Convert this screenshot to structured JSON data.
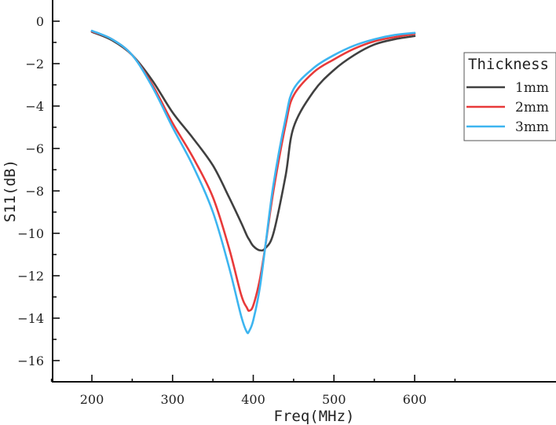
{
  "chart_data": {
    "type": "line",
    "title": "",
    "xlabel": "Freq(MHz)",
    "ylabel": "S11(dB)",
    "xlim": [
      150,
      650
    ],
    "ylim": [
      -17,
      1
    ],
    "xticks": [
      200,
      300,
      400,
      500,
      600
    ],
    "yticks": [
      0,
      -2,
      -4,
      -6,
      -8,
      -10,
      -12,
      -14,
      -16
    ],
    "grid": false,
    "legend": {
      "title": "Thickness",
      "position": "upper right"
    },
    "x": [
      200,
      225,
      250,
      275,
      300,
      325,
      350,
      370,
      385,
      392,
      395,
      400,
      408,
      415,
      425,
      440,
      450,
      475,
      500,
      525,
      550,
      575,
      600
    ],
    "series": [
      {
        "name": "1mm",
        "color": "#404040",
        "values": [
          -0.5,
          -0.9,
          -1.6,
          -2.8,
          -4.3,
          -5.5,
          -6.8,
          -8.3,
          -9.5,
          -10.1,
          -10.3,
          -10.6,
          -10.8,
          -10.7,
          -10.0,
          -7.3,
          -5.0,
          -3.3,
          -2.3,
          -1.6,
          -1.1,
          -0.85,
          -0.7
        ]
      },
      {
        "name": "2mm",
        "color": "#e83a3a",
        "values": [
          -0.48,
          -0.85,
          -1.6,
          -3.0,
          -4.8,
          -6.4,
          -8.3,
          -10.7,
          -12.9,
          -13.5,
          -13.65,
          -13.4,
          -12.2,
          -10.6,
          -8.0,
          -4.9,
          -3.5,
          -2.4,
          -1.8,
          -1.3,
          -0.95,
          -0.75,
          -0.6
        ]
      },
      {
        "name": "3mm",
        "color": "#3db5f0",
        "values": [
          -0.45,
          -0.85,
          -1.6,
          -3.1,
          -5.0,
          -6.8,
          -9.0,
          -11.6,
          -13.9,
          -14.65,
          -14.6,
          -14.1,
          -12.6,
          -10.6,
          -7.7,
          -4.6,
          -3.2,
          -2.2,
          -1.6,
          -1.15,
          -0.85,
          -0.65,
          -0.55
        ]
      }
    ]
  }
}
